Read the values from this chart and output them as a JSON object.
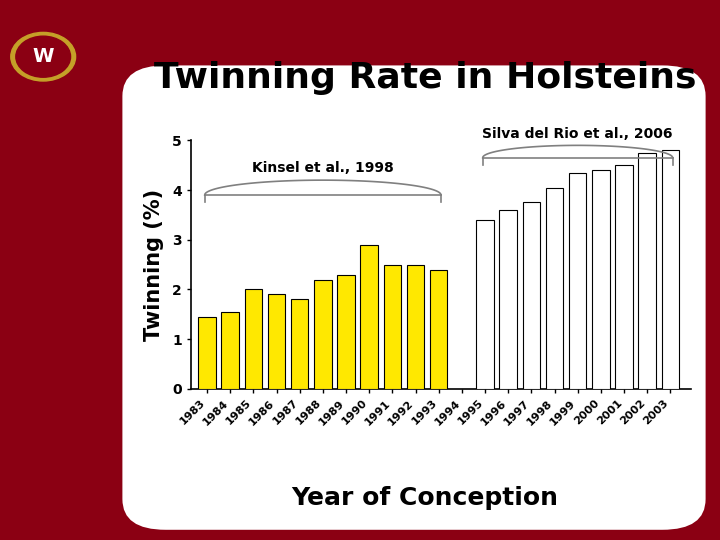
{
  "title": "Twinning Rate in Holsteins",
  "ylabel": "Twinning (%)",
  "xlabel": "Year of Conception",
  "years": [
    1983,
    1984,
    1985,
    1986,
    1987,
    1988,
    1989,
    1990,
    1991,
    1992,
    1993,
    1994,
    1995,
    1996,
    1997,
    1998,
    1999,
    2000,
    2001,
    2002,
    2003
  ],
  "values": [
    1.45,
    1.55,
    2.0,
    1.9,
    1.8,
    2.2,
    2.3,
    2.9,
    2.5,
    2.5,
    2.4,
    0.0,
    3.4,
    3.6,
    3.75,
    4.05,
    4.35,
    4.4,
    4.5,
    4.75,
    4.8
  ],
  "kinsel_label": "Kinsel et al., 1998",
  "silva_label": "Silva del Rio et al., 2006",
  "ylim": [
    0,
    5
  ],
  "yticks": [
    0,
    1,
    2,
    3,
    4,
    5
  ],
  "yellow_color": "#FFE800",
  "white_color": "#FFFFFF",
  "bar_edge_color": "#000000",
  "bg_maroon": "#8B0013",
  "bg_black": "#1a1a1a",
  "white_panel": "#FFFFFF",
  "title_fontsize": 26,
  "axis_label_fontsize": 16,
  "tick_fontsize": 8,
  "annotation_fontsize": 10,
  "ylabel_fontsize": 15
}
